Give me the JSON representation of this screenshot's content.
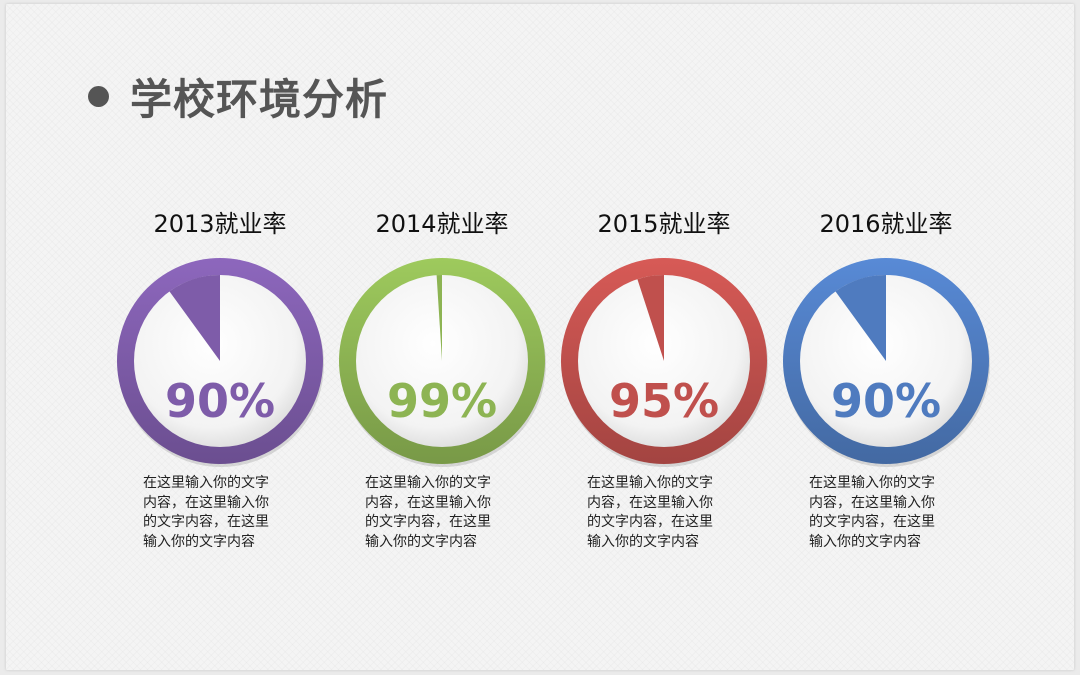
{
  "slide": {
    "title": "学校环境分析"
  },
  "chart_data": {
    "type": "pie",
    "items": [
      {
        "label": "2013就业率",
        "value": 90,
        "display": "90%",
        "color": "#7e5ca9",
        "description": [
          "在这里输入你的文字",
          "内容，在这里输入你",
          "的文字内容，在这里",
          "输入你的文字内容"
        ]
      },
      {
        "label": "2014就业率",
        "value": 99,
        "display": "99%",
        "color": "#8db453",
        "description": [
          "在这里输入你的文字",
          "内容，在这里输入你",
          "的文字内容，在这里",
          "输入你的文字内容"
        ]
      },
      {
        "label": "2015就业率",
        "value": 95,
        "display": "95%",
        "color": "#c0504d",
        "description": [
          "在这里输入你的文字",
          "内容，在这里输入你",
          "的文字内容，在这里",
          "输入你的文字内容"
        ]
      },
      {
        "label": "2016就业率",
        "value": 90,
        "display": "90%",
        "color": "#4f7bbf",
        "description": [
          "在这里输入你的文字",
          "内容，在这里输入你",
          "的文字内容，在这里",
          "输入你的文字内容"
        ]
      }
    ]
  }
}
